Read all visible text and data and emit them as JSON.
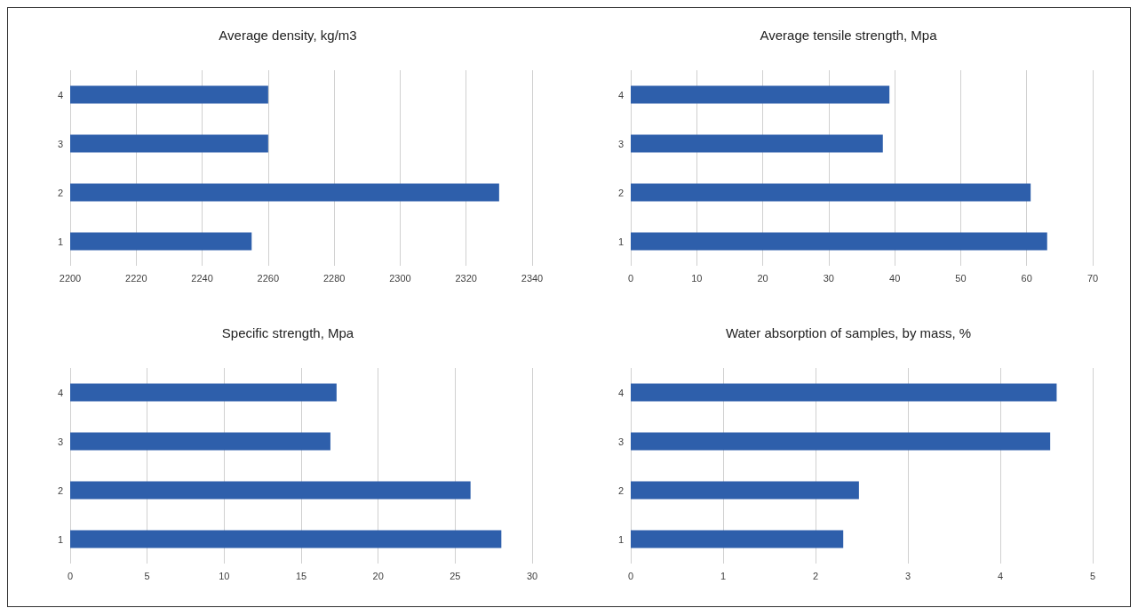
{
  "chart_data": [
    {
      "type": "bar",
      "orientation": "horizontal",
      "title": "Average density, kg/m3",
      "categories": [
        "4",
        "3",
        "2",
        "1"
      ],
      "values": [
        2260,
        2260,
        2330,
        2255
      ],
      "color": "#2e5fab",
      "xlim": [
        2200,
        2340
      ],
      "xticks": [
        2200,
        2220,
        2240,
        2260,
        2280,
        2300,
        2320,
        2340
      ],
      "grid": "x"
    },
    {
      "type": "bar",
      "orientation": "horizontal",
      "title": "Average tensile strength, Mpa",
      "categories": [
        "4",
        "3",
        "2",
        "1"
      ],
      "values": [
        39.2,
        38.2,
        60.6,
        63.1
      ],
      "color": "#2e5fab",
      "xlim": [
        0,
        70
      ],
      "xticks": [
        0,
        10,
        20,
        30,
        40,
        50,
        60,
        70
      ],
      "grid": "x"
    },
    {
      "type": "bar",
      "orientation": "horizontal",
      "title": "Specific strength, Mpa",
      "categories": [
        "4",
        "3",
        "2",
        "1"
      ],
      "values": [
        17.3,
        16.9,
        26.0,
        28.0
      ],
      "color": "#2e5fab",
      "xlim": [
        0,
        30
      ],
      "xticks": [
        0,
        5,
        10,
        15,
        20,
        25,
        30
      ],
      "grid": "x"
    },
    {
      "type": "bar",
      "orientation": "horizontal",
      "title": "Water absorption of samples, by mass, %",
      "categories": [
        "4",
        "3",
        "2",
        "1"
      ],
      "values": [
        4.61,
        4.54,
        2.47,
        2.3
      ],
      "color": "#2e5fab",
      "xlim": [
        0,
        5
      ],
      "xticks": [
        0,
        1,
        2,
        3,
        4,
        5
      ],
      "grid": "x"
    }
  ]
}
